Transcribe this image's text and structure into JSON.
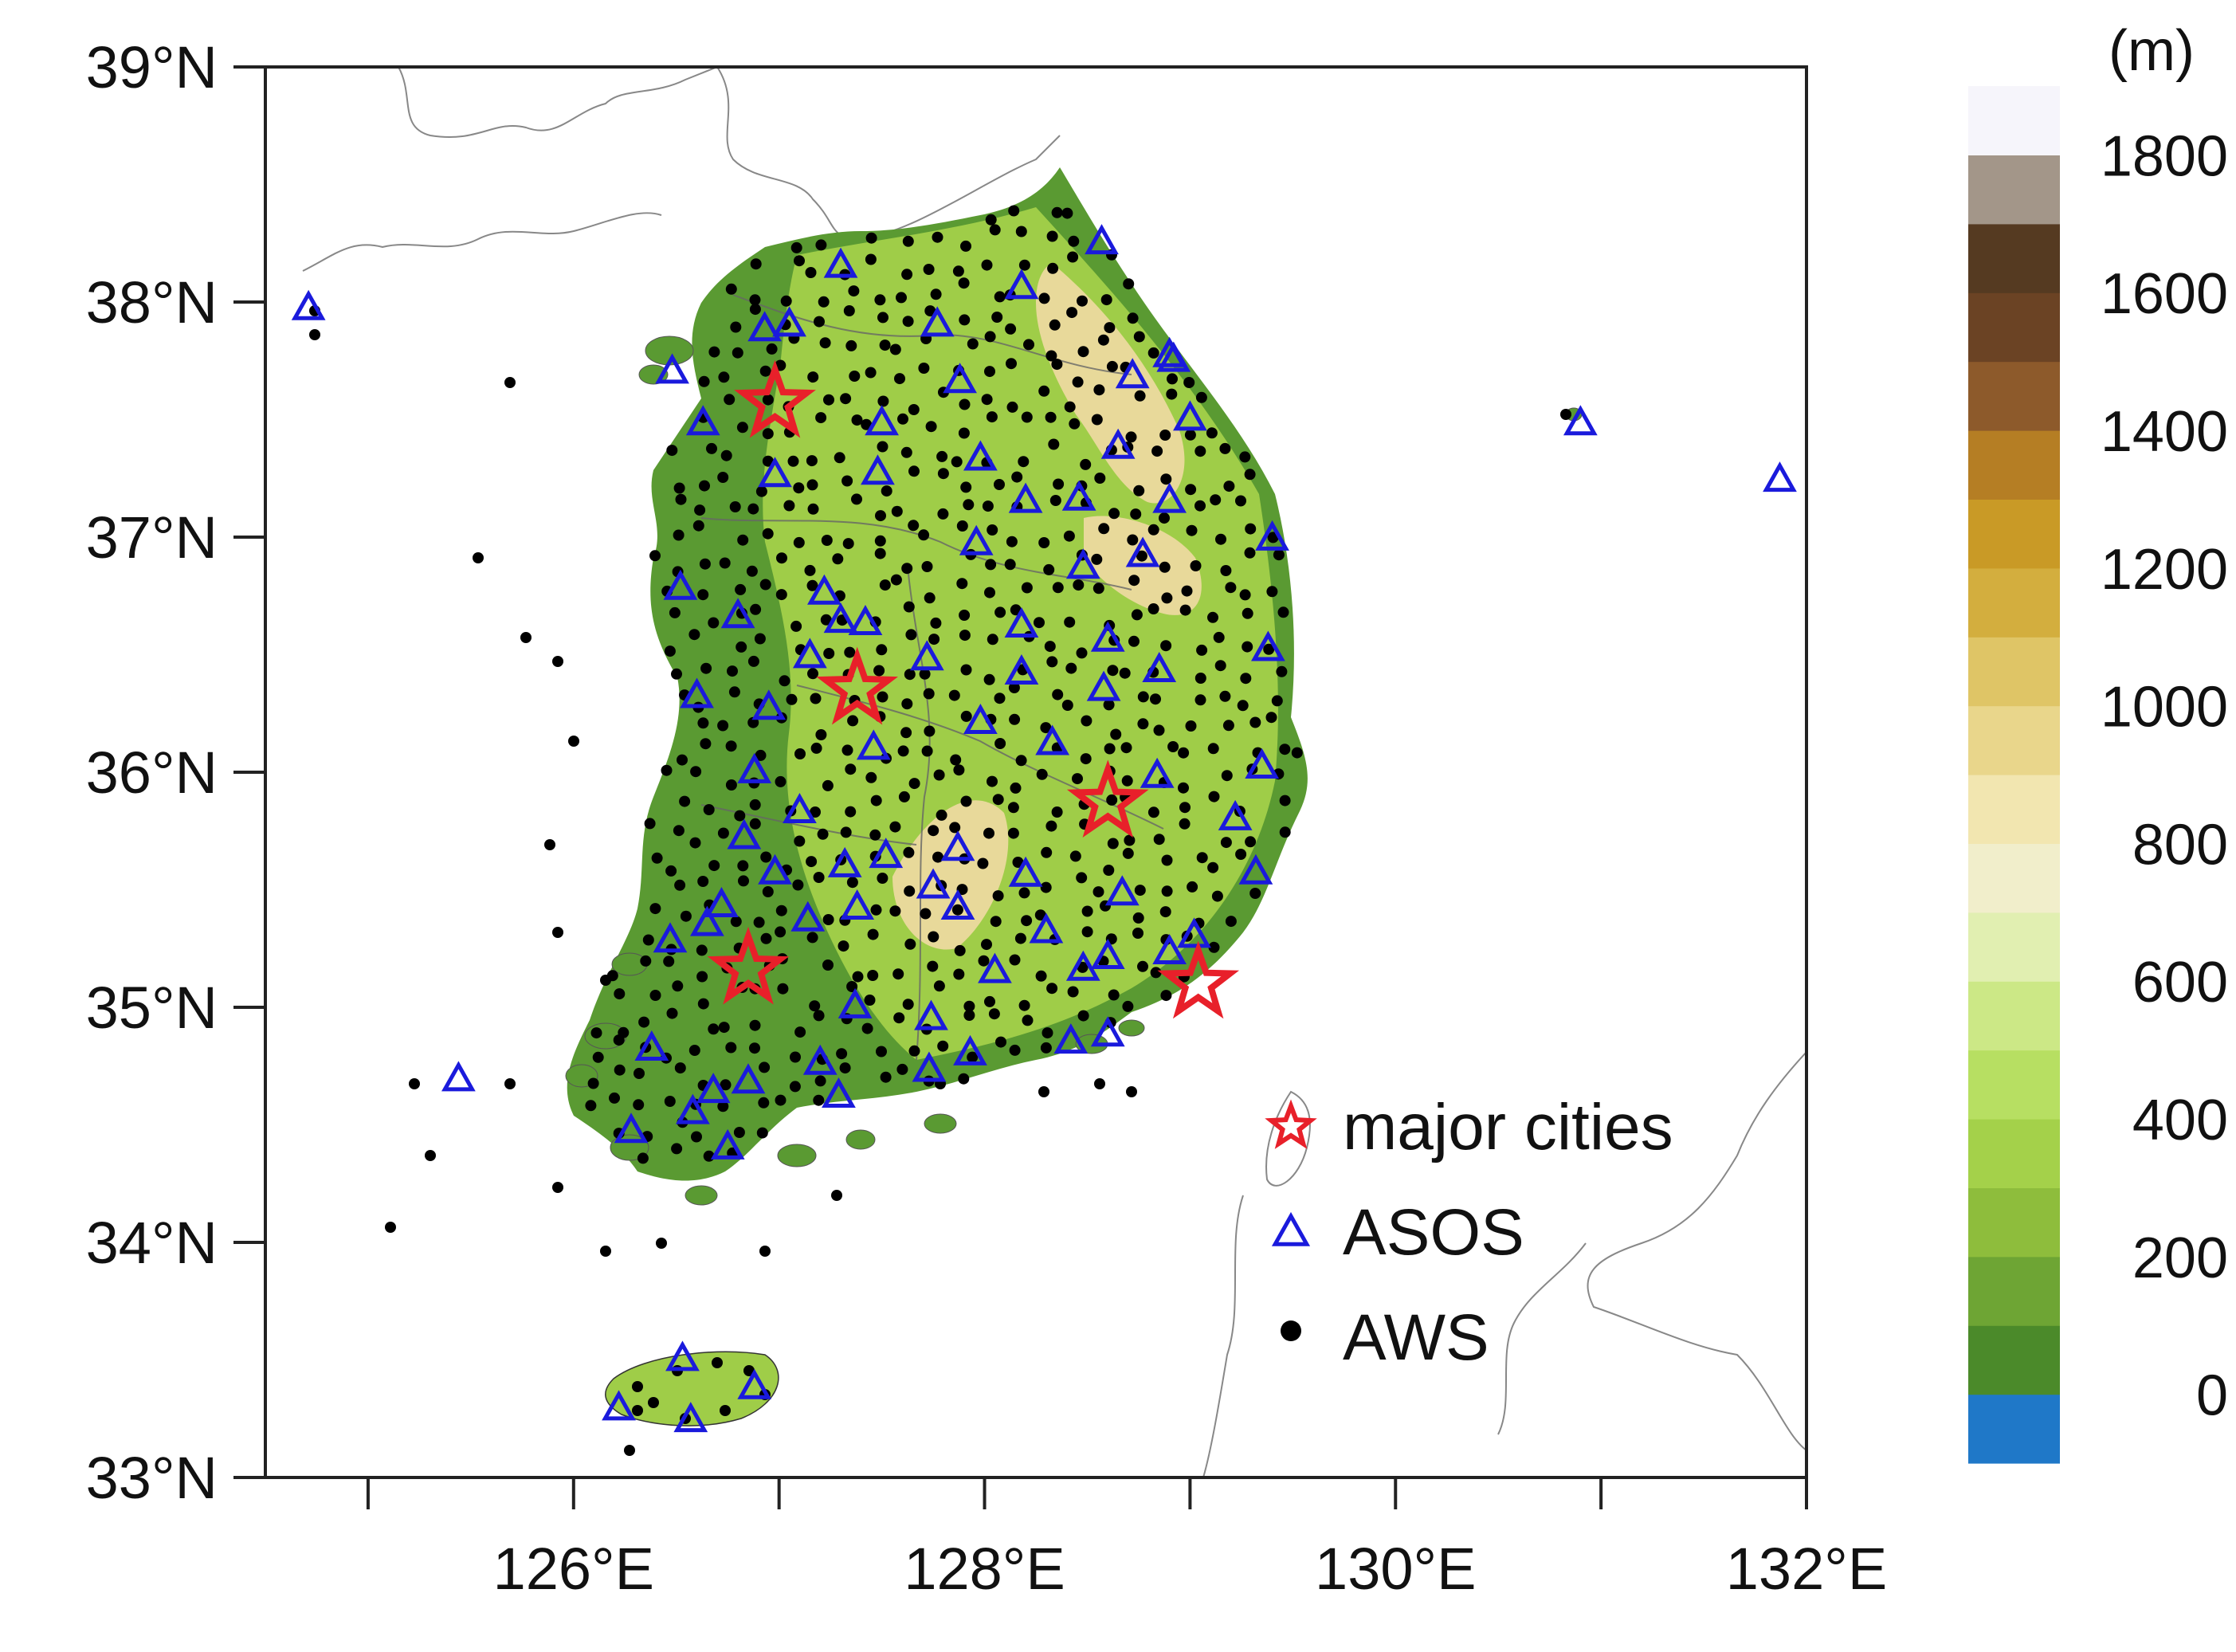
{
  "map": {
    "lon_range": [
      124.5,
      132.0
    ],
    "lat_range": [
      33.0,
      39.0
    ],
    "lon_ticks": [
      {
        "value": 125,
        "label": ""
      },
      {
        "value": 126,
        "label": "126°E"
      },
      {
        "value": 127,
        "label": ""
      },
      {
        "value": 128,
        "label": "128°E"
      },
      {
        "value": 129,
        "label": ""
      },
      {
        "value": 130,
        "label": "130°E"
      },
      {
        "value": 131,
        "label": ""
      },
      {
        "value": 132,
        "label": "132°E"
      }
    ],
    "lat_ticks": [
      {
        "value": 33,
        "label": "33°N"
      },
      {
        "value": 34,
        "label": "34°N"
      },
      {
        "value": 35,
        "label": "35°N"
      },
      {
        "value": 36,
        "label": "36°N"
      },
      {
        "value": 37,
        "label": "37°N"
      },
      {
        "value": 38,
        "label": "38°N"
      },
      {
        "value": 39,
        "label": "39°N"
      }
    ],
    "terrain_color": "#5a9a32",
    "highland_color": "#9fcd48",
    "mountain_color": "#e8d99a"
  },
  "colorbar": {
    "unit": "(m)",
    "colors": [
      "#1f78c8",
      "#4b8a2a",
      "#6ea534",
      "#8ebd3c",
      "#a4d14a",
      "#b7df62",
      "#cce886",
      "#e1efb1",
      "#f1eecb",
      "#f2e6b0",
      "#e9d68b",
      "#dfc566",
      "#d3ae3e",
      "#c99a26",
      "#b57e24",
      "#8d5a2b",
      "#6b4324",
      "#553a21",
      "#a39689",
      "#f6f5fb"
    ],
    "labels": [
      "0",
      "200",
      "400",
      "600",
      "800",
      "1000",
      "1200",
      "1400",
      "1600",
      "1800"
    ]
  },
  "legend": {
    "items": [
      {
        "symbol": "star",
        "label": "major cities",
        "color": "#e8202a"
      },
      {
        "symbol": "triangle",
        "label": "ASOS",
        "color": "#1a1adc"
      },
      {
        "symbol": "dot",
        "label": "AWS",
        "color": "#000000"
      }
    ]
  },
  "major_cities": [
    {
      "lon": 126.98,
      "lat": 37.57
    },
    {
      "lon": 127.38,
      "lat": 36.35
    },
    {
      "lon": 128.6,
      "lat": 35.87
    },
    {
      "lon": 126.85,
      "lat": 35.16
    },
    {
      "lon": 129.04,
      "lat": 35.1
    }
  ],
  "asos_stations": [
    [
      124.71,
      37.97
    ],
    [
      126.48,
      37.7
    ],
    [
      126.63,
      37.48
    ],
    [
      126.93,
      37.88
    ],
    [
      127.05,
      37.9
    ],
    [
      127.3,
      38.15
    ],
    [
      127.77,
      37.9
    ],
    [
      127.88,
      37.66
    ],
    [
      128.18,
      38.06
    ],
    [
      128.57,
      38.25
    ],
    [
      128.9,
      37.77
    ],
    [
      128.92,
      37.75
    ],
    [
      128.72,
      37.68
    ],
    [
      129.0,
      37.5
    ],
    [
      128.65,
      37.38
    ],
    [
      127.98,
      37.33
    ],
    [
      127.5,
      37.48
    ],
    [
      127.48,
      37.27
    ],
    [
      126.98,
      37.26
    ],
    [
      128.2,
      37.15
    ],
    [
      128.46,
      37.16
    ],
    [
      128.9,
      37.15
    ],
    [
      128.77,
      36.92
    ],
    [
      129.4,
      36.99
    ],
    [
      127.96,
      36.97
    ],
    [
      128.48,
      36.87
    ],
    [
      126.52,
      36.78
    ],
    [
      126.8,
      36.66
    ],
    [
      127.22,
      36.76
    ],
    [
      127.3,
      36.64
    ],
    [
      127.42,
      36.63
    ],
    [
      128.18,
      36.62
    ],
    [
      128.6,
      36.56
    ],
    [
      129.38,
      36.52
    ],
    [
      127.15,
      36.49
    ],
    [
      127.72,
      36.48
    ],
    [
      128.18,
      36.42
    ],
    [
      128.85,
      36.43
    ],
    [
      126.6,
      36.32
    ],
    [
      126.95,
      36.27
    ],
    [
      128.58,
      36.35
    ],
    [
      127.98,
      36.21
    ],
    [
      127.46,
      36.1
    ],
    [
      128.33,
      36.12
    ],
    [
      126.88,
      36.0
    ],
    [
      128.84,
      35.98
    ],
    [
      129.35,
      36.02
    ],
    [
      127.1,
      35.83
    ],
    [
      129.22,
      35.8
    ],
    [
      126.83,
      35.72
    ],
    [
      126.98,
      35.57
    ],
    [
      127.32,
      35.6
    ],
    [
      127.52,
      35.64
    ],
    [
      127.87,
      35.67
    ],
    [
      128.2,
      35.56
    ],
    [
      128.67,
      35.48
    ],
    [
      129.32,
      35.57
    ],
    [
      127.75,
      35.51
    ],
    [
      127.87,
      35.42
    ],
    [
      127.38,
      35.42
    ],
    [
      127.14,
      35.37
    ],
    [
      126.72,
      35.43
    ],
    [
      126.65,
      35.35
    ],
    [
      126.47,
      35.28
    ],
    [
      128.3,
      35.32
    ],
    [
      128.9,
      35.23
    ],
    [
      128.6,
      35.21
    ],
    [
      128.48,
      35.16
    ],
    [
      128.05,
      35.15
    ],
    [
      129.02,
      35.3
    ],
    [
      127.37,
      35.0
    ],
    [
      127.74,
      34.95
    ],
    [
      126.38,
      34.82
    ],
    [
      127.2,
      34.76
    ],
    [
      127.73,
      34.73
    ],
    [
      127.93,
      34.8
    ],
    [
      128.42,
      34.85
    ],
    [
      128.6,
      34.88
    ],
    [
      127.29,
      34.62
    ],
    [
      126.68,
      34.64
    ],
    [
      126.85,
      34.68
    ],
    [
      126.28,
      34.47
    ],
    [
      126.58,
      34.55
    ],
    [
      126.75,
      34.4
    ],
    [
      126.22,
      33.29
    ],
    [
      126.53,
      33.5
    ],
    [
      126.57,
      33.24
    ],
    [
      126.88,
      33.38
    ],
    [
      125.44,
      34.69
    ],
    [
      130.9,
      37.48
    ],
    [
      131.87,
      37.24
    ]
  ]
}
